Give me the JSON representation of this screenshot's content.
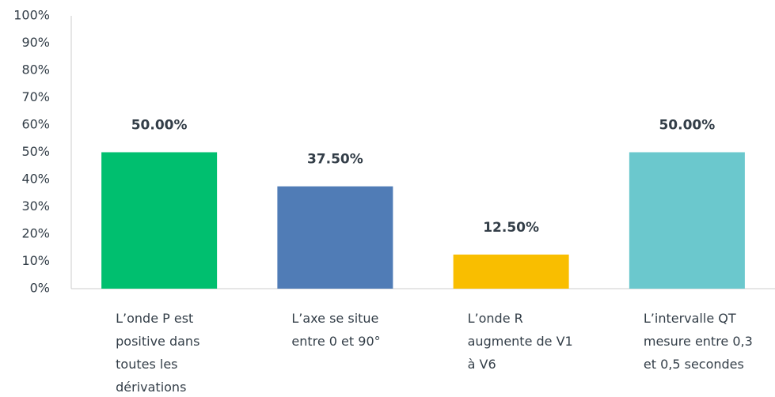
{
  "chart_data": {
    "type": "bar",
    "categories": [
      "L’onde P est positive dans toutes les dérivations",
      "L’axe se situe entre 0 et 90°",
      "L’onde R augmente de V1 à V6",
      "L’intervalle QT mesure entre 0,3 et 0,5 secondes"
    ],
    "values": [
      50,
      37.5,
      12.5,
      50
    ],
    "value_labels": [
      "50.00%",
      "37.50%",
      "12.50%",
      "50.00%"
    ],
    "colors": [
      "#00bf6f",
      "#507cb6",
      "#f9be00",
      "#6bc8cd"
    ],
    "ylim": [
      0,
      100
    ],
    "yticks": [
      {
        "value": 0,
        "label": "0%"
      },
      {
        "value": 10,
        "label": "10%"
      },
      {
        "value": 20,
        "label": "20%"
      },
      {
        "value": 30,
        "label": "30%"
      },
      {
        "value": 40,
        "label": "40%"
      },
      {
        "value": 50,
        "label": "50%"
      },
      {
        "value": 60,
        "label": "60%"
      },
      {
        "value": 70,
        "label": "70%"
      },
      {
        "value": 80,
        "label": "80%"
      },
      {
        "value": 90,
        "label": "90%"
      },
      {
        "value": 100,
        "label": "100%"
      }
    ],
    "grid": false
  }
}
